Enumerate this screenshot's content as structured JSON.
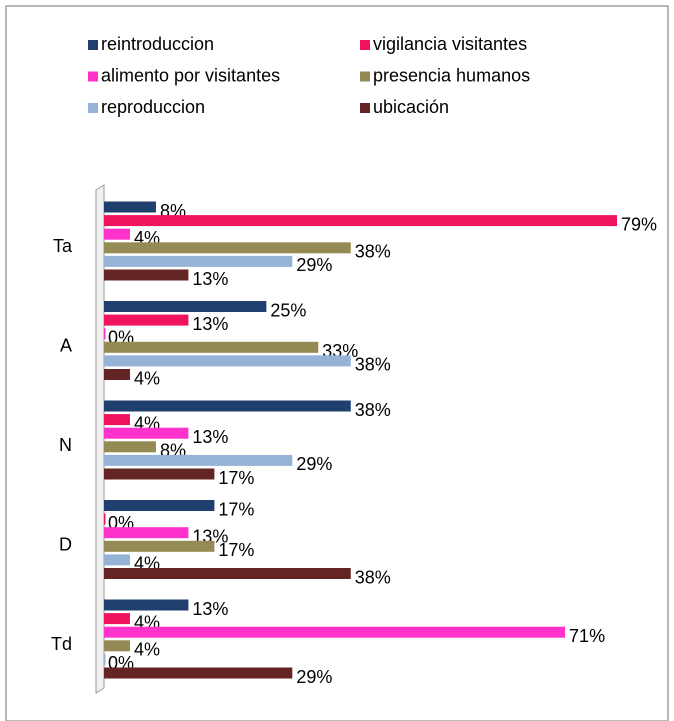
{
  "chart_data": {
    "type": "bar",
    "orientation": "horizontal",
    "categories": [
      "Ta",
      "A",
      "N",
      "D",
      "Td"
    ],
    "series": [
      {
        "name": "reintroduccion",
        "color": "#1f3f6e",
        "values": [
          8,
          25,
          38,
          17,
          13
        ],
        "value_labels": [
          "8%",
          "25%",
          "38%",
          "17%",
          "13%"
        ]
      },
      {
        "name": "vigilancia visitantes",
        "color": "#f01460",
        "values": [
          79,
          13,
          4,
          0,
          4
        ],
        "value_labels": [
          "79%",
          "13%",
          "4%",
          "0%",
          "4%"
        ]
      },
      {
        "name": "alimento por visitantes",
        "color": "#ff33cc",
        "values": [
          4,
          0,
          13,
          13,
          71
        ],
        "value_labels": [
          "4%",
          "0%",
          "13%",
          "13%",
          "71%"
        ]
      },
      {
        "name": "presencia humanos",
        "color": "#948a54",
        "values": [
          38,
          33,
          8,
          17,
          4
        ],
        "value_labels": [
          "38%",
          "33%",
          "8%",
          "17%",
          "4%"
        ]
      },
      {
        "name": "reproduccion",
        "color": "#95b3d7",
        "values": [
          29,
          38,
          29,
          4,
          0
        ],
        "value_labels": [
          "29%",
          "38%",
          "29%",
          "4%",
          "0%"
        ]
      },
      {
        "name": "ubicación",
        "color": "#632423",
        "values": [
          13,
          4,
          17,
          38,
          29
        ],
        "value_labels": [
          "13%",
          "4%",
          "17%",
          "38%",
          "29%"
        ]
      }
    ]
  }
}
